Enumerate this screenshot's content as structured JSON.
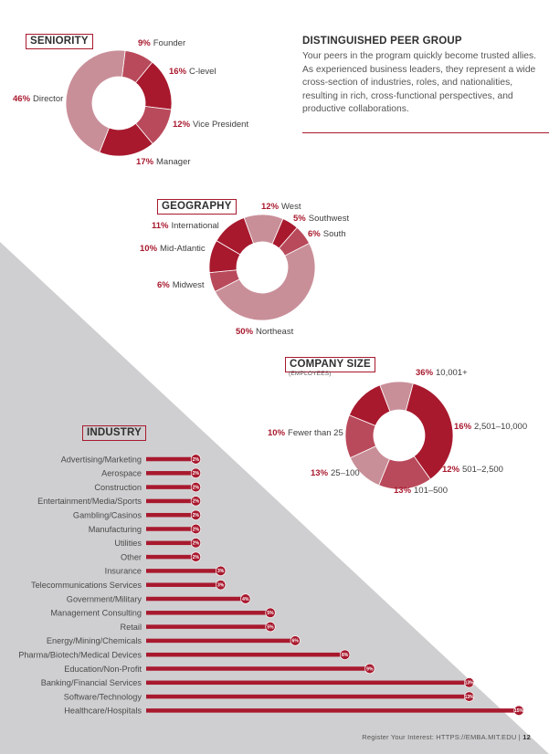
{
  "peer_group": {
    "title": "DISTINGUISHED PEER GROUP",
    "text": "Your peers in the program quickly become trusted allies. As experienced business leaders, they represent a wide cross-section of industries, roles, and nationalities, resulting in rich, cross-functional perspectives, and productive collaborations."
  },
  "footer": {
    "text": "Register Your Interest: HTTPS://EMBA.MIT.EDU",
    "separator": "|",
    "page": "12"
  },
  "colors": {
    "accent": "#a8192e",
    "light": "#c98f99",
    "medium": "#b94a5b",
    "grey_band": "#cfcfd1"
  },
  "chart_data": [
    {
      "type": "pie",
      "title": "SENIORITY",
      "labels": [
        "Founder",
        "C-level",
        "Vice President",
        "Manager",
        "Director"
      ],
      "values": [
        9,
        16,
        12,
        17,
        46
      ],
      "value_labels": [
        "9%",
        "16%",
        "12%",
        "17%",
        "46%"
      ]
    },
    {
      "type": "pie",
      "title": "GEOGRAPHY",
      "labels": [
        "West",
        "Southwest",
        "South",
        "Northeast",
        "Midwest",
        "Mid-Atlantic",
        "International"
      ],
      "values": [
        12,
        5,
        6,
        50,
        6,
        10,
        11
      ],
      "value_labels": [
        "12%",
        "5%",
        "6%",
        "50%",
        "6%",
        "10%",
        "11%"
      ]
    },
    {
      "type": "pie",
      "title": "COMPANY SIZE",
      "subtitle": "(EMPLOYEES)",
      "labels": [
        "10,001+",
        "2,501–10,000",
        "501–2,500",
        "101–500",
        "25–100",
        "Fewer than 25"
      ],
      "values": [
        36,
        16,
        12,
        13,
        13,
        10
      ],
      "value_labels": [
        "36%",
        "16%",
        "12%",
        "13%",
        "13%",
        "10%"
      ]
    },
    {
      "type": "bar",
      "title": "INDUSTRY",
      "orientation": "horizontal",
      "categories": [
        "Advertising/Marketing",
        "Aerospace",
        "Construction",
        "Entertainment/Media/Sports",
        "Gambling/Casinos",
        "Manufacturing",
        "Utilities",
        "Other",
        "Insurance",
        "Telecommunications Services",
        "Government/Military",
        "Management Consulting",
        "Retail",
        "Energy/Mining/Chemicals",
        "Pharma/Biotech/Medical Devices",
        "Education/Non-Profit",
        "Banking/Financial Services",
        "Software/Technology",
        "Healthcare/Hospitals"
      ],
      "values": [
        2,
        2,
        2,
        2,
        2,
        2,
        2,
        2,
        3,
        3,
        4,
        5,
        5,
        6,
        8,
        9,
        13,
        13,
        15
      ],
      "value_labels": [
        "2%",
        "2%",
        "2%",
        "2%",
        "2%",
        "2%",
        "2%",
        "2%",
        "3%",
        "3%",
        "4%",
        "5%",
        "5%",
        "6%",
        "8%",
        "9%",
        "13%",
        "13%",
        "15%"
      ]
    }
  ]
}
